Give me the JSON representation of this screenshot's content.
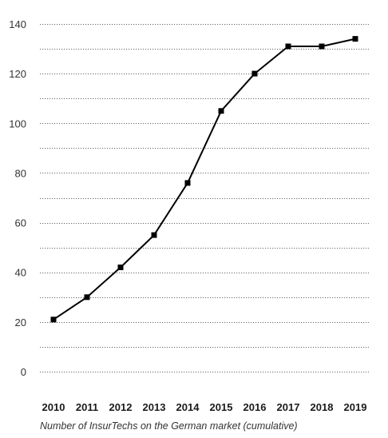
{
  "chart_data": {
    "type": "line",
    "title": "",
    "xlabel": "Number of InsurTechs on the German market (cumulative)",
    "ylabel": "",
    "categories": [
      "2010",
      "2011",
      "2012",
      "2013",
      "2014",
      "2015",
      "2016",
      "2017",
      "2018",
      "2019"
    ],
    "series": [
      {
        "values": [
          21,
          30,
          42,
          55,
          76,
          105,
          120,
          131,
          131,
          134
        ]
      }
    ],
    "ylim": [
      0,
      140
    ],
    "yticks": [
      0,
      20,
      40,
      60,
      80,
      100,
      120,
      140
    ],
    "grid": true,
    "grid_step": 10,
    "legend": "none",
    "colors": {
      "line": "#000000",
      "grid": "#6a6a6a"
    }
  }
}
